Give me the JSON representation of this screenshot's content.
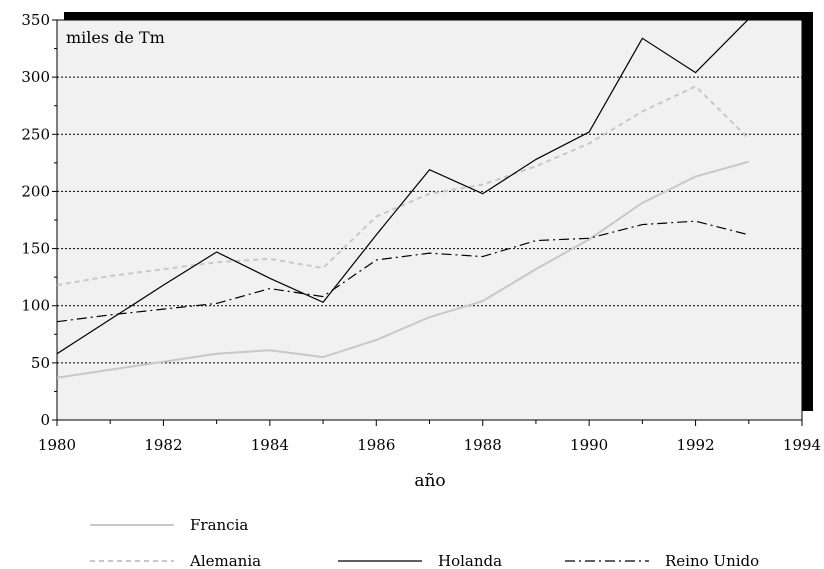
{
  "chart_data": {
    "type": "line",
    "unit_label": "miles de Tm",
    "xlabel": "año",
    "ylabel": "",
    "xlim": [
      1980,
      1994
    ],
    "ylim": [
      0,
      350
    ],
    "x_ticks": [
      1980,
      1982,
      1984,
      1986,
      1988,
      1990,
      1992,
      1994
    ],
    "y_ticks": [
      0,
      50,
      100,
      150,
      200,
      250,
      300,
      350
    ],
    "grid": "horizontal dotted",
    "legend_position": "bottom",
    "x": [
      1980,
      1981,
      1982,
      1983,
      1984,
      1985,
      1986,
      1987,
      1988,
      1989,
      1990,
      1991,
      1992,
      1993
    ],
    "series": [
      {
        "name": "Francia",
        "style": "solid",
        "color": "#c8c8c8",
        "values": [
          37,
          44,
          51,
          58,
          61,
          55,
          70,
          90,
          104,
          132,
          158,
          190,
          213,
          226
        ]
      },
      {
        "name": "Alemania",
        "style": "dashed",
        "color": "#c8c8c8",
        "values": [
          118,
          126,
          132,
          138,
          141,
          133,
          178,
          198,
          206,
          222,
          242,
          270,
          292,
          246
        ]
      },
      {
        "name": "Holanda",
        "style": "solid",
        "color": "#000000",
        "values": [
          58,
          88,
          118,
          147,
          124,
          103,
          162,
          219,
          198,
          228,
          252,
          334,
          304,
          351
        ]
      },
      {
        "name": "Reino Unido",
        "style": "dashdot",
        "color": "#000000",
        "values": [
          86,
          92,
          97,
          102,
          115,
          108,
          140,
          146,
          143,
          157,
          159,
          171,
          174,
          162
        ]
      }
    ]
  }
}
